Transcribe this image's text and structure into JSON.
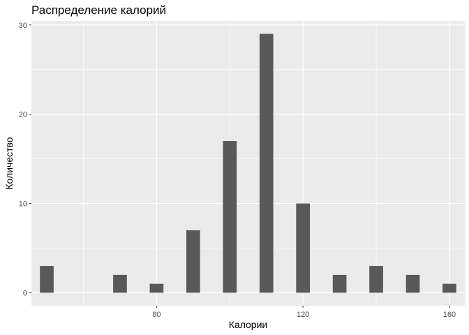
{
  "chart_data": {
    "type": "bar",
    "title": "Распределение калорий",
    "xlabel": "Калории",
    "ylabel": "Количество",
    "x": [
      50,
      70,
      80,
      90,
      100,
      110,
      120,
      130,
      140,
      150,
      160
    ],
    "values": [
      3,
      2,
      1,
      7,
      17,
      29,
      10,
      2,
      3,
      2,
      1
    ],
    "bin_width": 3.75,
    "xlim": [
      45.8,
      164.2
    ],
    "ylim": [
      -1.45,
      30.45
    ],
    "x_ticks": [
      80,
      120,
      160
    ],
    "x_tick_labels": [
      "80",
      "120",
      "160"
    ],
    "y_ticks": [
      0,
      10,
      20,
      30
    ],
    "y_tick_labels": [
      "0",
      "10",
      "20",
      "30"
    ],
    "grid": true,
    "colors": {
      "panel": "#ebebeb",
      "grid": "#ffffff",
      "bar": "#595959",
      "tick_text": "#4d4d4d",
      "tick_mark": "#333333"
    }
  }
}
